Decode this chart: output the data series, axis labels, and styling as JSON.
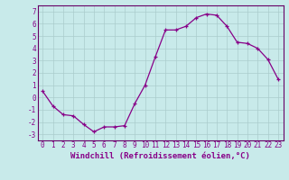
{
  "x": [
    0,
    1,
    2,
    3,
    4,
    5,
    6,
    7,
    8,
    9,
    10,
    11,
    12,
    13,
    14,
    15,
    16,
    17,
    18,
    19,
    20,
    21,
    22,
    23
  ],
  "y": [
    0.5,
    -0.7,
    -1.4,
    -1.5,
    -2.2,
    -2.8,
    -2.4,
    -2.4,
    -2.3,
    -0.5,
    1.0,
    3.3,
    5.5,
    5.5,
    5.8,
    6.5,
    6.8,
    6.7,
    5.8,
    4.5,
    4.4,
    4.0,
    3.1,
    1.5
  ],
  "line_color": "#880088",
  "marker": "+",
  "bg_color": "#c8eaea",
  "grid_color": "#aacccc",
  "xlabel": "Windchill (Refroidissement éolien,°C)",
  "xlabel_fontsize": 6.5,
  "tick_fontsize": 5.5,
  "ylim": [
    -3.5,
    7.5
  ],
  "xlim": [
    -0.5,
    23.5
  ],
  "yticks": [
    -3,
    -2,
    -1,
    0,
    1,
    2,
    3,
    4,
    5,
    6,
    7
  ],
  "xticks": [
    0,
    1,
    2,
    3,
    4,
    5,
    6,
    7,
    8,
    9,
    10,
    11,
    12,
    13,
    14,
    15,
    16,
    17,
    18,
    19,
    20,
    21,
    22,
    23
  ],
  "spine_color": "#660066"
}
